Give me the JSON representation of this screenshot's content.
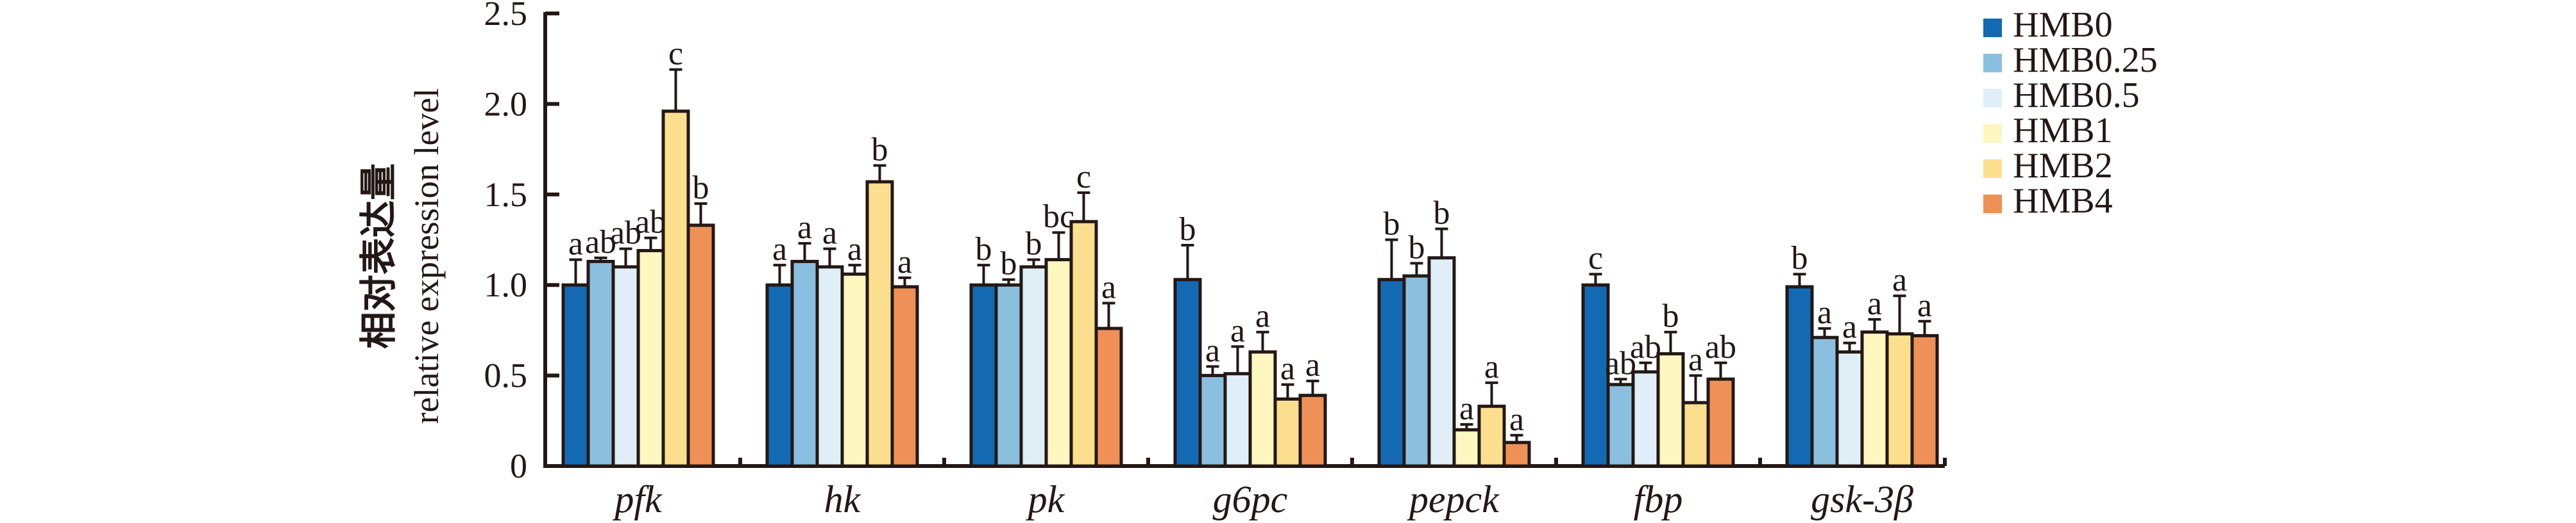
{
  "chart_data": {
    "type": "bar",
    "title": "",
    "xlabel": "",
    "ylabel_zh": "相对表达量",
    "ylabel": "relative expression level",
    "ylim": [
      0,
      2.5
    ],
    "yticks": [
      "0",
      "0.5",
      "1.0",
      "1.5",
      "2.0",
      "2.5"
    ],
    "ytick_values": [
      0,
      0.5,
      1.0,
      1.5,
      2.0,
      2.5
    ],
    "grid": false,
    "legend_position": "right",
    "categories": [
      "pfk",
      "hk",
      "pk",
      "g6pc",
      "pepck",
      "fbp",
      "gsk-3β"
    ],
    "series": [
      {
        "name": "HMB0",
        "color": "#1469b3",
        "values": [
          1.0,
          1.0,
          1.0,
          1.03,
          1.03,
          1.0,
          0.99
        ],
        "errors": [
          0.14,
          0.11,
          0.11,
          0.19,
          0.22,
          0.06,
          0.07
        ],
        "letters": [
          "a",
          "a",
          "b",
          "b",
          "b",
          "c",
          "b"
        ]
      },
      {
        "name": "HMB0.25",
        "color": "#8bbfdf",
        "values": [
          1.13,
          1.13,
          1.0,
          0.5,
          1.05,
          0.45,
          0.71
        ],
        "errors": [
          0.02,
          0.1,
          0.03,
          0.05,
          0.07,
          0.03,
          0.05
        ],
        "letters": [
          "ab",
          "a",
          "b",
          "a",
          "b",
          "ab",
          "a"
        ]
      },
      {
        "name": "HMB0.5",
        "color": "#e0eff7",
        "values": [
          1.1,
          1.1,
          1.1,
          0.51,
          1.15,
          0.52,
          0.63
        ],
        "errors": [
          0.1,
          0.1,
          0.04,
          0.15,
          0.16,
          0.05,
          0.05
        ],
        "letters": [
          "ab",
          "a",
          "b",
          "a",
          "b",
          "ab",
          "a"
        ]
      },
      {
        "name": "HMB1",
        "color": "#fff6c0",
        "values": [
          1.19,
          1.06,
          1.14,
          0.63,
          0.2,
          0.62,
          0.74
        ],
        "errors": [
          0.07,
          0.05,
          0.15,
          0.11,
          0.03,
          0.12,
          0.07
        ],
        "letters": [
          "ab",
          "a",
          "bc",
          "a",
          "a",
          "b",
          "a"
        ]
      },
      {
        "name": "HMB2",
        "color": "#fcdf8e",
        "values": [
          1.96,
          1.57,
          1.35,
          0.37,
          0.33,
          0.35,
          0.73
        ],
        "errors": [
          0.23,
          0.09,
          0.16,
          0.08,
          0.13,
          0.15,
          0.21
        ],
        "letters": [
          "c",
          "b",
          "c",
          "a",
          "a",
          "a",
          "a"
        ]
      },
      {
        "name": "HMB4",
        "color": "#ef9157",
        "values": [
          1.33,
          0.99,
          0.76,
          0.39,
          0.13,
          0.48,
          0.72
        ],
        "errors": [
          0.12,
          0.05,
          0.14,
          0.08,
          0.04,
          0.09,
          0.08
        ],
        "letters": [
          "b",
          "a",
          "a",
          "a",
          "a",
          "ab",
          "a"
        ]
      }
    ]
  }
}
